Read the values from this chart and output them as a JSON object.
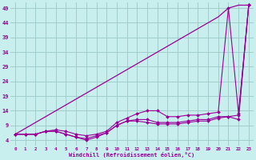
{
  "xlabel": "Windchill (Refroidissement éolien,°C)",
  "bg_color": "#c8eeee",
  "grid_color": "#a0cccc",
  "line_color": "#990099",
  "xlim": [
    -0.5,
    23.5
  ],
  "ylim": [
    2,
    51
  ],
  "xticks": [
    0,
    1,
    2,
    3,
    4,
    5,
    6,
    7,
    8,
    9,
    10,
    11,
    12,
    13,
    14,
    15,
    16,
    17,
    18,
    19,
    20,
    21,
    22,
    23
  ],
  "yticks": [
    4,
    9,
    14,
    19,
    24,
    29,
    34,
    39,
    44,
    49
  ],
  "line1_x": [
    0,
    1,
    2,
    3,
    4,
    5,
    6,
    7,
    8,
    9,
    10,
    11,
    12,
    13,
    14,
    15,
    16,
    17,
    18,
    19,
    20,
    21,
    22,
    23
  ],
  "line1_y": [
    6,
    6,
    6,
    7,
    7.5,
    7,
    6,
    5.5,
    6,
    7,
    10,
    11.5,
    13,
    14,
    14,
    12,
    12,
    12.5,
    12.5,
    13,
    13.5,
    49,
    13,
    50
  ],
  "line2_x": [
    0,
    1,
    2,
    3,
    4,
    5,
    6,
    7,
    8,
    9,
    10,
    11,
    12,
    13,
    14,
    15,
    16,
    17,
    18,
    19,
    20,
    21,
    22,
    23
  ],
  "line2_y": [
    6,
    6,
    6,
    7,
    7,
    6,
    5,
    4.5,
    5.5,
    6.5,
    9,
    10.5,
    11,
    11,
    10,
    10,
    10,
    10.5,
    11,
    11,
    12,
    12,
    12.5,
    50
  ],
  "line3_x": [
    0,
    1,
    2,
    3,
    4,
    5,
    6,
    7,
    8,
    9,
    10,
    11,
    12,
    13,
    14,
    15,
    16,
    17,
    18,
    19,
    20,
    21,
    22,
    23
  ],
  "line3_y": [
    6,
    6,
    6,
    7,
    7,
    6,
    5,
    4,
    5,
    6.5,
    9,
    10.5,
    10.5,
    10,
    9.5,
    9.5,
    9.5,
    10,
    10.5,
    10.5,
    11.5,
    12,
    11,
    50
  ],
  "line_diag_x": [
    0,
    1,
    2,
    3,
    4,
    5,
    6,
    7,
    8,
    9,
    10,
    11,
    12,
    13,
    14,
    15,
    16,
    17,
    18,
    19,
    20,
    21,
    22,
    23
  ],
  "line_diag_y": [
    6,
    8,
    10,
    12,
    14,
    16,
    18,
    20,
    22,
    24,
    26,
    28,
    30,
    32,
    34,
    36,
    38,
    40,
    42,
    44,
    46,
    49,
    50,
    50
  ]
}
